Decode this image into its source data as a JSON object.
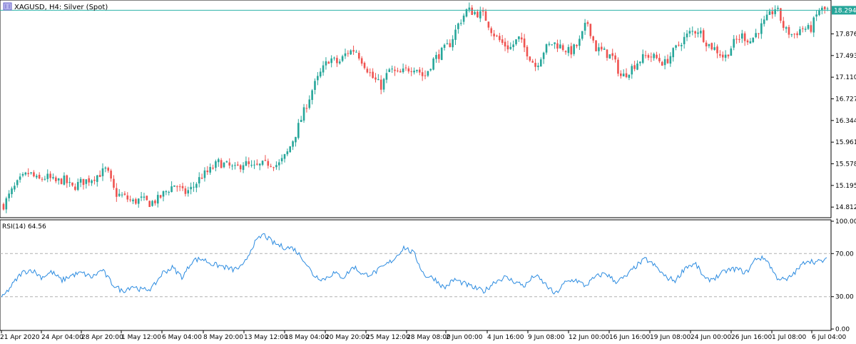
{
  "header": {
    "symbol_title": "XAGUSD, H4:  Silver (Spot)"
  },
  "price_panel": {
    "current_price_label": "18.294",
    "y_tick_labels": [
      "17.876",
      "17.493",
      "17.110",
      "16.727",
      "16.344",
      "15.961",
      "15.578",
      "15.195",
      "14.812"
    ]
  },
  "rsi_panel": {
    "title": "RSI(14) 64.56",
    "y_tick_labels": [
      "100.00",
      "70.00",
      "30.00",
      "0.00"
    ]
  },
  "x_tick_labels": [
    "21 Apr 2020",
    "24 Apr 04:00",
    "28 Apr 20:00",
    "1 May 12:00",
    "6 May 04:00",
    "8 May 20:00",
    "13 May 12:00",
    "18 May 04:00",
    "20 May 20:00",
    "25 May 12:00",
    "28 May 08:00",
    "2 Jun 00:00",
    "4 Jun 16:00",
    "9 Jun 08:00",
    "12 Jun 00:00",
    "16 Jun 16:00",
    "19 Jun 08:00",
    "24 Jun 00:00",
    "26 Jun 16:00",
    "1 Jul 08:00",
    "6 Jul 04:00"
  ],
  "colors": {
    "bull": "#26a69a",
    "bear": "#ef5350",
    "rsi_line": "#2b8be0",
    "level_line": "#2bb3a8",
    "price_label_bg": "#26a69a",
    "grid_dash": "#b0b0b0",
    "border": "#000000"
  },
  "chart_data": [
    {
      "type": "candlestick",
      "title": "XAGUSD, H4:  Silver (Spot)",
      "ylim": [
        14.65,
        18.45
      ],
      "y_ticks": [
        17.876,
        17.493,
        17.11,
        16.727,
        16.344,
        15.961,
        15.578,
        15.195,
        14.812
      ],
      "horizontal_line": 18.294,
      "close_path": [
        14.85,
        15.1,
        15.3,
        15.42,
        15.28,
        15.35,
        15.25,
        15.3,
        15.15,
        15.25,
        15.3,
        15.38,
        15.48,
        15.05,
        15.0,
        14.9,
        14.95,
        14.88,
        14.95,
        15.1,
        15.22,
        15.05,
        15.15,
        15.35,
        15.45,
        15.6,
        15.55,
        15.48,
        15.6,
        15.5,
        15.55,
        15.6,
        15.55,
        15.75,
        16.1,
        16.5,
        16.9,
        17.2,
        17.45,
        17.35,
        17.55,
        17.6,
        17.35,
        17.1,
        16.95,
        17.25,
        17.15,
        17.25,
        17.3,
        17.1,
        17.4,
        17.55,
        17.7,
        18.05,
        18.3,
        18.25,
        18.2,
        17.9,
        17.72,
        17.62,
        17.8,
        17.55,
        17.3,
        17.6,
        17.72,
        17.65,
        17.55,
        17.7,
        18.1,
        17.62,
        17.55,
        17.45,
        17.1,
        17.25,
        17.4,
        17.5,
        17.45,
        17.35,
        17.55,
        17.75,
        17.9,
        17.95,
        17.7,
        17.6,
        17.45,
        17.7,
        17.85,
        17.75,
        17.95,
        18.15,
        18.35,
        17.95,
        17.85,
        17.98,
        17.95,
        18.3,
        18.3
      ],
      "visible_candles": 480
    },
    {
      "type": "line",
      "title": "RSI(14) 64.56",
      "ylim": [
        0,
        100
      ],
      "y_ticks": [
        100,
        70,
        30,
        0
      ],
      "levels": [
        70,
        30
      ],
      "series": [
        {
          "values": [
            28,
            40,
            52,
            55,
            48,
            53,
            45,
            50,
            52,
            48,
            55,
            42,
            35,
            40,
            36,
            38,
            52,
            57,
            48,
            64,
            65,
            60,
            58,
            55,
            58,
            78,
            88,
            80,
            76,
            75,
            65,
            50,
            46,
            52,
            48,
            58,
            50,
            52,
            58,
            65,
            76,
            70,
            50,
            47,
            38,
            46,
            42,
            38,
            35,
            44,
            48,
            44,
            40,
            50,
            42,
            32,
            43,
            46,
            40,
            48,
            52,
            44,
            48,
            58,
            65,
            58,
            48,
            45,
            58,
            60,
            45,
            48,
            54,
            56,
            52,
            66,
            65,
            48,
            45,
            54,
            64,
            62,
            64
          ]
        }
      ]
    }
  ]
}
